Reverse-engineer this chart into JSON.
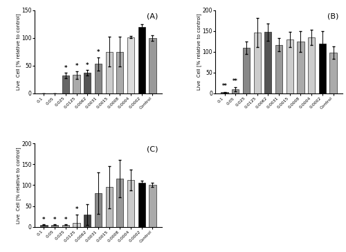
{
  "categories": [
    "0.1",
    "0.05",
    "0.025",
    "0.0125",
    "0.0062",
    "0.0031",
    "0.0015",
    "0.0008",
    "0.0004",
    "0.0002",
    "Control"
  ],
  "panel_A": {
    "title": "(A)",
    "values": [
      0,
      0,
      32,
      33,
      37,
      53,
      75,
      75,
      101,
      119,
      100
    ],
    "errors": [
      0,
      0,
      5,
      7,
      5,
      12,
      27,
      27,
      2,
      5,
      5
    ],
    "sig": [
      false,
      false,
      true,
      true,
      true,
      true,
      false,
      false,
      false,
      false,
      false
    ],
    "sig2": [
      false,
      false,
      false,
      false,
      false,
      false,
      false,
      false,
      false,
      false,
      false
    ],
    "ylim": [
      0,
      150
    ],
    "yticks": [
      0,
      50,
      100,
      150
    ]
  },
  "panel_B": {
    "title": "(B)",
    "values": [
      3,
      10,
      110,
      146,
      147,
      117,
      130,
      125,
      134,
      120,
      98
    ],
    "errors": [
      1,
      5,
      15,
      35,
      20,
      15,
      18,
      25,
      18,
      30,
      15
    ],
    "sig": [
      false,
      false,
      false,
      false,
      false,
      false,
      false,
      false,
      false,
      false,
      false
    ],
    "sig2": [
      true,
      true,
      false,
      false,
      false,
      false,
      false,
      false,
      false,
      false,
      false
    ],
    "ylim": [
      0,
      200
    ],
    "yticks": [
      0,
      50,
      100,
      150,
      200
    ]
  },
  "panel_C": {
    "title": "(C)",
    "values": [
      5,
      5,
      5,
      10,
      29,
      81,
      95,
      116,
      112,
      105,
      100
    ],
    "errors": [
      1,
      1,
      1,
      20,
      25,
      50,
      50,
      45,
      25,
      5,
      5
    ],
    "sig": [
      true,
      true,
      true,
      true,
      false,
      false,
      false,
      false,
      false,
      false,
      false
    ],
    "sig2": [
      false,
      false,
      false,
      false,
      false,
      false,
      false,
      false,
      false,
      false,
      false
    ],
    "ylim": [
      0,
      200
    ],
    "yticks": [
      0,
      50,
      100,
      150,
      200
    ]
  },
  "bar_colors_A": [
    "#555555",
    "#999999",
    "#666666",
    "#aaaaaa",
    "#555555",
    "#888888",
    "#cccccc",
    "#aaaaaa",
    "#dddddd",
    "#000000",
    "#999999"
  ],
  "bar_colors_B": [
    "#555555",
    "#999999",
    "#888888",
    "#cccccc",
    "#555555",
    "#999999",
    "#cccccc",
    "#aaaaaa",
    "#cccccc",
    "#000000",
    "#aaaaaa"
  ],
  "bar_colors_C": [
    "#555555",
    "#888888",
    "#aaaaaa",
    "#cccccc",
    "#444444",
    "#888888",
    "#bbbbbb",
    "#999999",
    "#cccccc",
    "#000000",
    "#aaaaaa"
  ],
  "ylabel": "Live  Cell [% relative to control]",
  "bg_color": "#ffffff",
  "bar_width": 0.65
}
